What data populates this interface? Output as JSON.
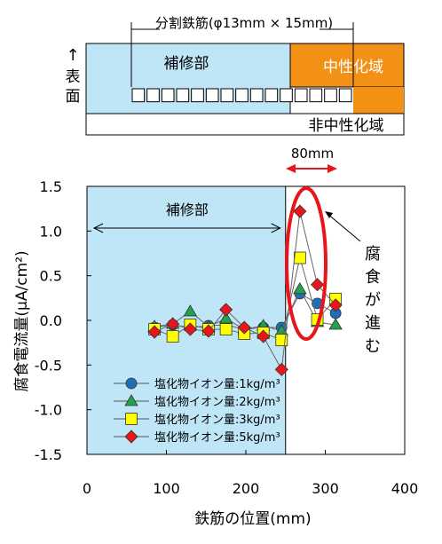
{
  "diagram": {
    "rebar_label": "分割鉄筋(φ13mm × 15mm)",
    "repair_label": "補修部",
    "neutralized_label": "中性化域",
    "non_neutralized_label": "非中性化域",
    "surface_arrow": "↑",
    "surface_label_1": "表",
    "surface_label_2": "面",
    "distance_label": "80mm",
    "repair_color": "#bfe6f7",
    "neutralized_color": "#f29116"
  },
  "chart_data": {
    "type": "line",
    "title": "",
    "xlabel": "鉄筋の位置(mm)",
    "ylabel": "腐食電流量(μA/cm²)",
    "xlim": [
      0,
      400
    ],
    "ylim": [
      -1.5,
      1.5
    ],
    "x_ticks": [
      "0",
      "100",
      "200",
      "300",
      "400"
    ],
    "y_ticks": [
      "1.5",
      "1.0",
      "0.5",
      "0.0",
      "-0.5",
      "-1.0",
      "-1.5"
    ],
    "grid": false,
    "legend_position": "bottom-left",
    "repair_region": [
      0,
      250
    ],
    "repair_region_label": "補修部",
    "annotation": [
      "腐",
      "食",
      "が",
      "進",
      "む"
    ],
    "x": [
      85,
      108,
      130,
      153,
      175,
      198,
      222,
      245,
      268,
      290,
      313
    ],
    "series": [
      {
        "name": "塩化物イオン量:1kg/m³",
        "marker": "circle",
        "color": "#1f6fb8",
        "values": [
          -0.08,
          -0.05,
          -0.08,
          -0.06,
          -0.05,
          -0.1,
          -0.08,
          -0.08,
          0.3,
          0.19,
          0.08
        ]
      },
      {
        "name": "塩化物イオン量:2kg/m³",
        "marker": "triangle",
        "color": "#22a24a",
        "values": [
          -0.07,
          -0.04,
          0.1,
          -0.07,
          0.02,
          -0.1,
          -0.06,
          -0.12,
          0.35,
          -0.02,
          -0.05
        ]
      },
      {
        "name": "塩化物イオン量:3kg/m³",
        "marker": "square",
        "color": "#ffff00",
        "values": [
          -0.1,
          -0.18,
          -0.05,
          -0.1,
          -0.1,
          -0.15,
          -0.14,
          -0.22,
          0.7,
          0.01,
          0.24
        ]
      },
      {
        "name": "塩化物イオン量:5kg/m³",
        "marker": "diamond",
        "color": "#e8151b",
        "values": [
          -0.13,
          -0.04,
          -0.1,
          -0.12,
          0.12,
          -0.08,
          -0.18,
          -0.55,
          1.22,
          0.4,
          0.17
        ]
      }
    ]
  }
}
